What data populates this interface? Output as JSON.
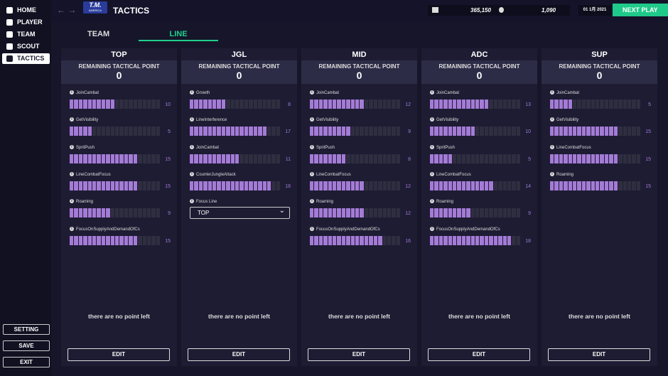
{
  "nav": {
    "items": [
      "HOME",
      "PLAYER",
      "TEAM",
      "SCOUT",
      "TACTICS"
    ],
    "bottom": [
      "SETTING",
      "SAVE",
      "EXIT"
    ]
  },
  "header": {
    "logo": "T.M.",
    "logo_sub": "AMERICA",
    "title": "TACTICS",
    "money": "365,150",
    "fans": "1,090",
    "date": "01 1月 2021",
    "next": "NEXT PLAY"
  },
  "tabs": [
    "TEAM",
    "LINE"
  ],
  "stat_bar_segments": 20,
  "lanes": [
    {
      "name": "TOP",
      "remaining_label": "REMAINING TACTICAL POINT",
      "remaining": 0,
      "stats": [
        {
          "name": "JoinCambat",
          "value": 10
        },
        {
          "name": "GetVisibility",
          "value": 5
        },
        {
          "name": "SpritPush",
          "value": 15
        },
        {
          "name": "LineCombatFocus",
          "value": 15
        },
        {
          "name": "Roaming",
          "value": 9
        },
        {
          "name": "FocusOnSupplyAndDemandOfCs",
          "value": 15
        }
      ],
      "footer": "there are no point left",
      "button": "EDIT"
    },
    {
      "name": "JGL",
      "remaining_label": "REMAINING TACTICAL POINT",
      "remaining": 0,
      "stats": [
        {
          "name": "Growth",
          "value": 8
        },
        {
          "name": "LineInterference",
          "value": 17
        },
        {
          "name": "JoinCambat",
          "value": 11
        },
        {
          "name": "CounterJungleAttack",
          "value": 18
        }
      ],
      "select": {
        "name": "Focus Line",
        "value": "TOP"
      },
      "footer": "there are no point left",
      "button": "EDIT"
    },
    {
      "name": "MID",
      "remaining_label": "REMAINING TACTICAL POINT",
      "remaining": 0,
      "stats": [
        {
          "name": "JoinCambat",
          "value": 12
        },
        {
          "name": "GetVisibility",
          "value": 9
        },
        {
          "name": "SpritPush",
          "value": 8
        },
        {
          "name": "LineCombatFocus",
          "value": 12
        },
        {
          "name": "Roaming",
          "value": 12
        },
        {
          "name": "FocusOnSupplyAndDemandOfCs",
          "value": 16
        }
      ],
      "footer": "there are no point left",
      "button": "EDIT"
    },
    {
      "name": "ADC",
      "remaining_label": "REMAINING TACTICAL POINT",
      "remaining": 0,
      "stats": [
        {
          "name": "JoinCambat",
          "value": 13
        },
        {
          "name": "GetVisibility",
          "value": 10
        },
        {
          "name": "SpritPush",
          "value": 5
        },
        {
          "name": "LineCombatFocus",
          "value": 14
        },
        {
          "name": "Roaming",
          "value": 9
        },
        {
          "name": "FocusOnSupplyAndDemandOfCs",
          "value": 18
        }
      ],
      "footer": "there are no point left",
      "button": "EDIT"
    },
    {
      "name": "SUP",
      "remaining_label": "REMAINING TACTICAL POINT",
      "remaining": 0,
      "stats": [
        {
          "name": "JoinCambat",
          "value": 5
        },
        {
          "name": "GetVisibility",
          "value": 15
        },
        {
          "name": "LineCombatFocus",
          "value": 15
        },
        {
          "name": "Roaming",
          "value": 15
        }
      ],
      "footer": "there are no point left",
      "button": "EDIT"
    }
  ]
}
